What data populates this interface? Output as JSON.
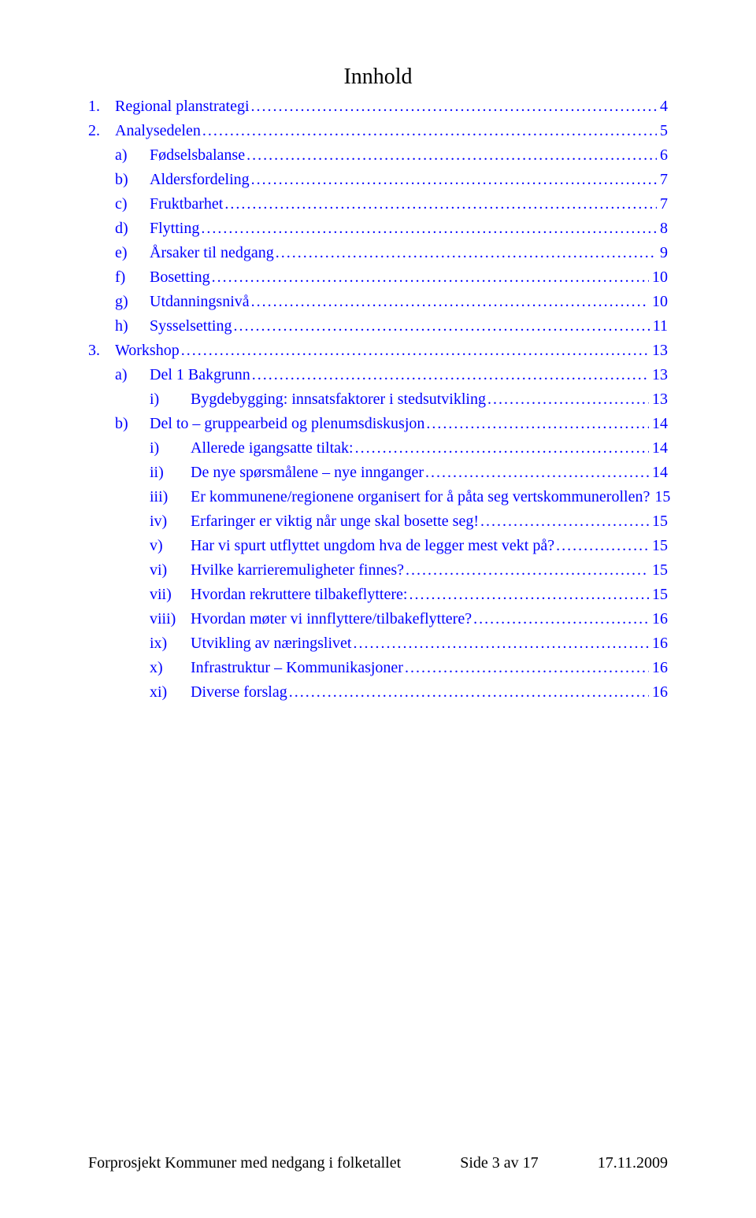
{
  "title": "Innhold",
  "colors": {
    "link": "#0000ff",
    "text": "#000000",
    "background": "#ffffff"
  },
  "typography": {
    "font_family": "Times New Roman",
    "body_fontsize_pt": 15,
    "title_fontsize_pt": 21
  },
  "toc": [
    {
      "indent": 0,
      "prefix": "1.",
      "label": "Regional planstrategi",
      "page": "4"
    },
    {
      "indent": 0,
      "prefix": "2.",
      "label": "Analysedelen",
      "page": "5"
    },
    {
      "indent": 1,
      "prefix": "a)",
      "label": "Fødselsbalanse",
      "page": "6"
    },
    {
      "indent": 1,
      "prefix": "b)",
      "label": "Aldersfordeling",
      "page": "7"
    },
    {
      "indent": 1,
      "prefix": "c)",
      "label": "Fruktbarhet",
      "page": "7"
    },
    {
      "indent": 1,
      "prefix": "d)",
      "label": "Flytting",
      "page": "8"
    },
    {
      "indent": 1,
      "prefix": "e)",
      "label": "Årsaker til nedgang",
      "page": "9"
    },
    {
      "indent": 1,
      "prefix": "f)",
      "label": "Bosetting",
      "page": "10"
    },
    {
      "indent": 1,
      "prefix": "g)",
      "label": "Utdanningsnivå",
      "page": "10"
    },
    {
      "indent": 1,
      "prefix": "h)",
      "label": "Sysselsetting",
      "page": "11"
    },
    {
      "indent": 0,
      "prefix": "3.",
      "label": "Workshop",
      "page": "13"
    },
    {
      "indent": 1,
      "prefix": "a)",
      "label": "Del 1 Bakgrunn",
      "page": "13"
    },
    {
      "indent": 2,
      "prefix": "i)",
      "label": "Bygdebygging: innsatsfaktorer i stedsutvikling",
      "page": "13"
    },
    {
      "indent": 1,
      "prefix": "b)",
      "label": "Del to – gruppearbeid og plenumsdiskusjon",
      "page": "14"
    },
    {
      "indent": 2,
      "prefix": "i)",
      "label": "Allerede igangsatte tiltak:",
      "page": "14"
    },
    {
      "indent": 2,
      "prefix": "ii)",
      "label": "De nye spørsmålene – nye innganger",
      "page": "14"
    },
    {
      "indent": 2,
      "prefix": "iii)",
      "label": "Er kommunene/regionene organisert for å påta seg vertskommunerollen?",
      "page": "15"
    },
    {
      "indent": 2,
      "prefix": "iv)",
      "label": "Erfaringer er viktig når unge skal bosette seg!",
      "page": "15"
    },
    {
      "indent": 2,
      "prefix": "v)",
      "label": "Har vi spurt utflyttet ungdom hva de legger mest vekt på?",
      "page": "15"
    },
    {
      "indent": 2,
      "prefix": "vi)",
      "label": "Hvilke karrieremuligheter finnes?",
      "page": "15"
    },
    {
      "indent": 2,
      "prefix": "vii)",
      "label": "Hvordan rekruttere tilbakeflyttere:",
      "page": "15"
    },
    {
      "indent": 2,
      "prefix": "viii)",
      "label": "Hvordan møter vi innflyttere/tilbakeflyttere?",
      "page": "16"
    },
    {
      "indent": 2,
      "prefix": "ix)",
      "label": "Utvikling av næringslivet",
      "page": "16"
    },
    {
      "indent": 2,
      "prefix": "x)",
      "label": "Infrastruktur – Kommunikasjoner",
      "page": "16"
    },
    {
      "indent": 2,
      "prefix": "xi)",
      "label": "Diverse forslag",
      "page": "16"
    }
  ],
  "footer": {
    "left": "Forprosjekt Kommuner med nedgang i folketallet",
    "center": "Side 3 av 17",
    "right": "17.11.2009"
  }
}
